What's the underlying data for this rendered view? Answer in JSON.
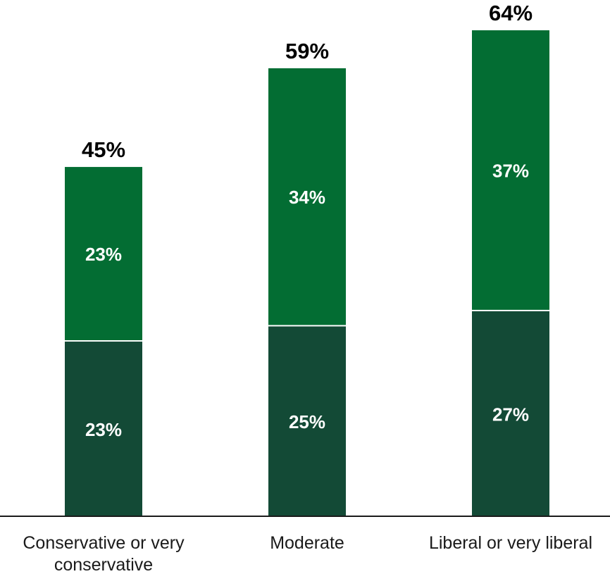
{
  "chart_data": {
    "type": "bar",
    "stacked": true,
    "categories": [
      [
        "Conservative or very",
        "conservative"
      ],
      [
        "Moderate"
      ],
      [
        "Liberal or very liberal"
      ]
    ],
    "series": [
      {
        "values": [
          23,
          25,
          27
        ],
        "color": "#134a36"
      },
      {
        "values": [
          23,
          34,
          37
        ],
        "color": "#036d33"
      }
    ],
    "totals": [
      "45%",
      "59%",
      "64%"
    ],
    "segment_labels": [
      [
        "23%",
        "25%",
        "27%"
      ],
      [
        "23%",
        "34%",
        "37%"
      ]
    ],
    "ylim": [
      0,
      64
    ],
    "grid": false,
    "legend": "none"
  }
}
